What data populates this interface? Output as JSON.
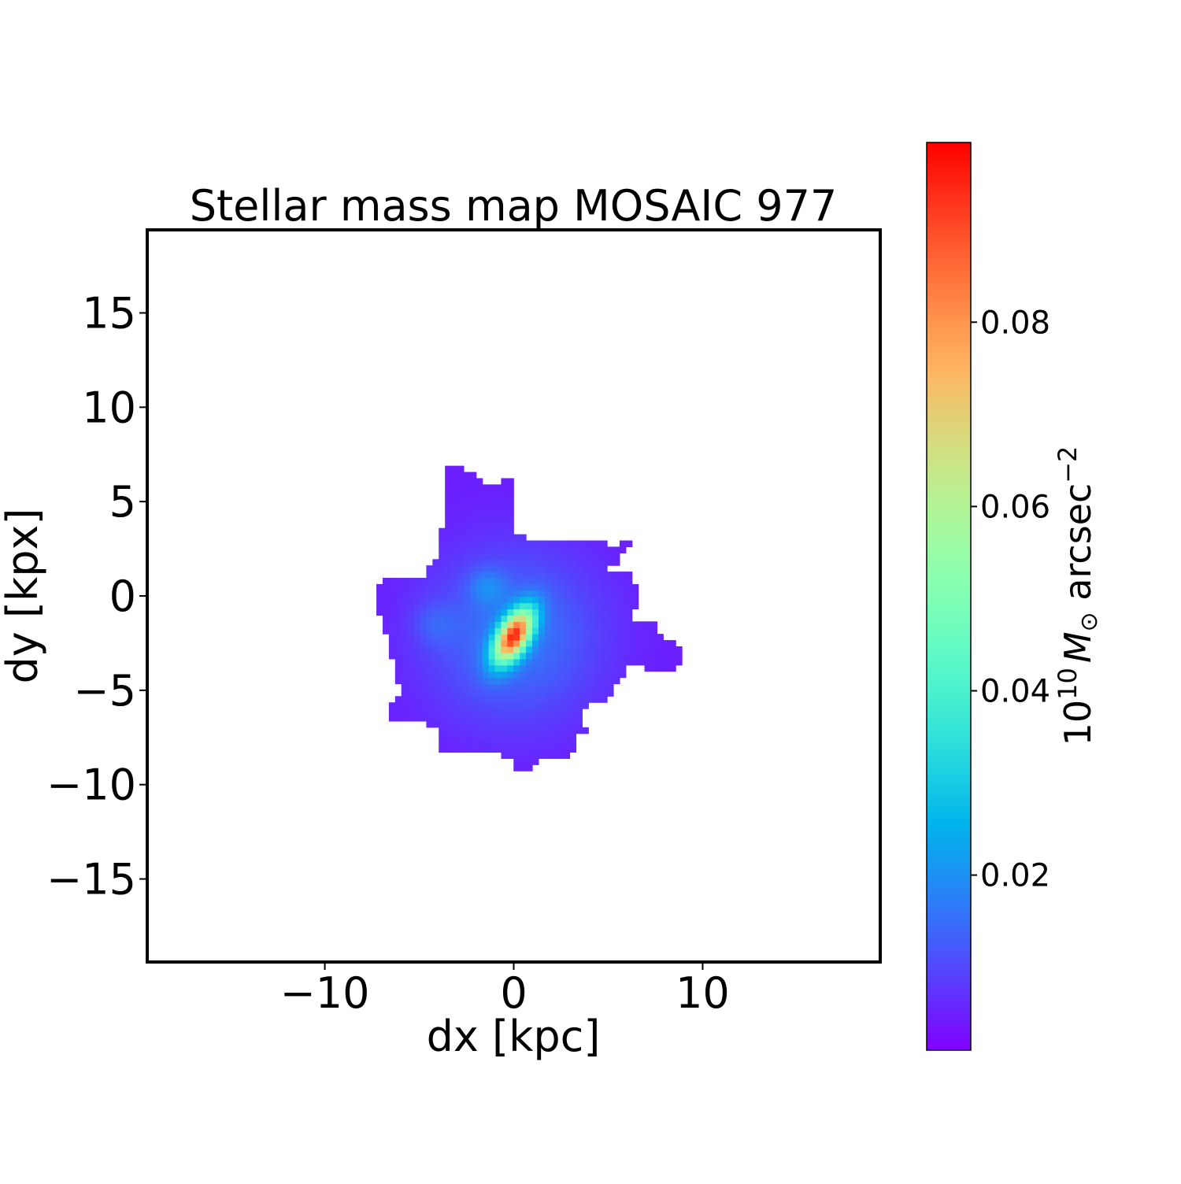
{
  "chart_data": {
    "type": "heatmap",
    "title": "Stellar mass map MOSAIC 977",
    "xlabel": "dx [kpc]",
    "ylabel": "dy [kpx]",
    "xlim": [
      -19.4,
      19.4
    ],
    "ylim": [
      -19.4,
      19.4
    ],
    "xticks": [
      -10,
      0,
      10
    ],
    "xtick_labels": [
      "−10",
      "0",
      "10"
    ],
    "yticks": [
      -15,
      -10,
      -5,
      0,
      5,
      10,
      15
    ],
    "ytick_labels": [
      "−15",
      "−10",
      "−5",
      "0",
      "5",
      "10",
      "15"
    ],
    "grid": false,
    "colormap": "rainbow",
    "colorbar": {
      "label_base": "10",
      "label_exp": "10",
      "label_unit": "M",
      "label_sub": "⊙",
      "label_rest": " arcsec",
      "label_rest_exp": "−2",
      "range": [
        0.001,
        0.0995
      ],
      "ticks": [
        0.02,
        0.04,
        0.06,
        0.08
      ],
      "tick_labels": [
        "0.02",
        "0.04",
        "0.06",
        "0.08"
      ]
    },
    "peak": {
      "x": 0.0,
      "y": -2.1,
      "value": 0.0995
    },
    "outline_kpc": [
      [
        -3.75,
        6.63
      ],
      [
        -3.42,
        7.0
      ],
      [
        -2.92,
        7.0
      ],
      [
        -2.58,
        6.63
      ],
      [
        -1.96,
        6.38
      ],
      [
        -1.67,
        5.96
      ],
      [
        -0.71,
        5.96
      ],
      [
        -0.5,
        6.29
      ],
      [
        -0.17,
        6.29
      ],
      [
        -0.17,
        3.13
      ],
      [
        4.71,
        2.96
      ],
      [
        5.13,
        2.63
      ],
      [
        5.67,
        2.63
      ],
      [
        5.75,
        3.08
      ],
      [
        6.29,
        3.08
      ],
      [
        6.29,
        2.63
      ],
      [
        5.75,
        2.38
      ],
      [
        5.42,
        1.75
      ],
      [
        5.0,
        1.46
      ],
      [
        5.0,
        1.13
      ],
      [
        6.25,
        1.46
      ],
      [
        6.5,
        0.5
      ],
      [
        6.67,
        -0.13
      ],
      [
        6.38,
        -0.75
      ],
      [
        6.17,
        -1.38
      ],
      [
        7.42,
        -1.29
      ],
      [
        7.75,
        -2.13
      ],
      [
        8.58,
        -2.38
      ],
      [
        8.88,
        -3.25
      ],
      [
        8.58,
        -3.88
      ],
      [
        7.0,
        -3.96
      ],
      [
        6.5,
        -3.67
      ],
      [
        5.88,
        -3.54
      ],
      [
        5.75,
        -4.38
      ],
      [
        5.17,
        -4.79
      ],
      [
        5.08,
        -5.46
      ],
      [
        3.88,
        -5.75
      ],
      [
        3.67,
        -6.58
      ],
      [
        4.0,
        -7.21
      ],
      [
        3.25,
        -7.54
      ],
      [
        3.08,
        -8.54
      ],
      [
        1.5,
        -8.63
      ],
      [
        1.0,
        -9.29
      ],
      [
        0.13,
        -9.38
      ],
      [
        -0.08,
        -8.79
      ],
      [
        -0.75,
        -8.46
      ],
      [
        -0.92,
        -8.17
      ],
      [
        -3.0,
        -8.17
      ],
      [
        -3.33,
        -8.38
      ],
      [
        -3.92,
        -8.13
      ],
      [
        -4.13,
        -7.0
      ],
      [
        -4.67,
        -6.79
      ],
      [
        -5.83,
        -6.71
      ],
      [
        -6.54,
        -6.71
      ],
      [
        -6.67,
        -6.21
      ],
      [
        -6.33,
        -5.54
      ],
      [
        -5.83,
        -5.21
      ],
      [
        -6.13,
        -4.5
      ],
      [
        -6.33,
        -3.46
      ],
      [
        -6.67,
        -2.71
      ],
      [
        -6.83,
        -1.46
      ],
      [
        -7.17,
        -0.75
      ],
      [
        -7.42,
        -0.63
      ],
      [
        -7.17,
        0.08
      ],
      [
        -7.08,
        1.04
      ],
      [
        -4.67,
        1.04
      ],
      [
        -4.46,
        1.63
      ],
      [
        -3.83,
        2.04
      ]
    ]
  }
}
